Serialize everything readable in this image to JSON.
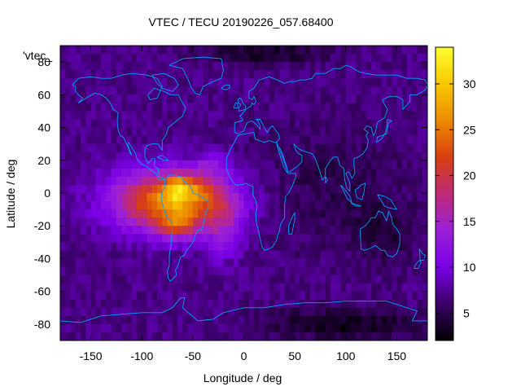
{
  "chart_data": {
    "type": "heatmap",
    "title": "VTEC / TECU 20190226_057.68400",
    "xlabel": "Longitude / deg",
    "ylabel": "Latitude / deg",
    "key_label": "'vtec_",
    "xlim": [
      -180,
      180
    ],
    "ylim": [
      -90,
      90
    ],
    "x_ticks": [
      -150,
      -100,
      -50,
      0,
      50,
      100,
      150
    ],
    "y_ticks": [
      -80,
      -60,
      -40,
      -20,
      0,
      20,
      40,
      60,
      80
    ],
    "x_tick_labels": [
      "-150",
      "-100",
      "-50",
      "0",
      "50",
      "100",
      "150"
    ],
    "y_tick_labels": [
      "-80",
      "-60",
      "-40",
      "-20",
      "0",
      "20",
      "40",
      "60",
      "80"
    ],
    "colorbar": {
      "range": [
        2,
        34
      ],
      "ticks": [
        5,
        10,
        15,
        20,
        25,
        30
      ],
      "tick_labels": [
        "5",
        "10",
        "15",
        "20",
        "25",
        "30"
      ],
      "colors": [
        "#000000",
        "#3a0066",
        "#7a00e6",
        "#9a20d8",
        "#c02a78",
        "#d84010",
        "#ec8a00",
        "#f8c800",
        "#ffff30"
      ]
    },
    "grid": "off",
    "overlay": "coastlines",
    "overlay_color": "#00a0ff",
    "background_vtec": 7,
    "peak_vtec": 34,
    "features": [
      {
        "lon": -70,
        "lat": -5,
        "vtec": 20,
        "sigma_lon": 55,
        "sigma_lat": 18
      },
      {
        "lon": -65,
        "lat": 3,
        "vtec": 8,
        "sigma_lon": 12,
        "sigma_lat": 8
      },
      {
        "lon": -65,
        "lat": -20,
        "vtec": 7,
        "sigma_lon": 18,
        "sigma_lat": 8
      },
      {
        "lon": -45,
        "lat": 3,
        "vtec": 4,
        "sigma_lon": 18,
        "sigma_lat": 8
      },
      {
        "lon": -30,
        "lat": 17,
        "vtec": 4,
        "sigma_lon": 15,
        "sigma_lat": 6
      },
      {
        "lon": -20,
        "lat": -20,
        "vtec": 5,
        "sigma_lon": 18,
        "sigma_lat": 20
      },
      {
        "lon": 100,
        "lat": -80,
        "vtec": -4,
        "sigma_lon": 80,
        "sigma_lat": 10
      },
      {
        "lon": 20,
        "lat": 85,
        "vtec": -4,
        "sigma_lon": 60,
        "sigma_lat": 6
      },
      {
        "lon": 90,
        "lat": 5,
        "vtec": -2,
        "sigma_lon": 70,
        "sigma_lat": 40
      },
      {
        "lon": 140,
        "lat": -25,
        "vtec": -2,
        "sigma_lon": 30,
        "sigma_lat": 20
      }
    ]
  }
}
